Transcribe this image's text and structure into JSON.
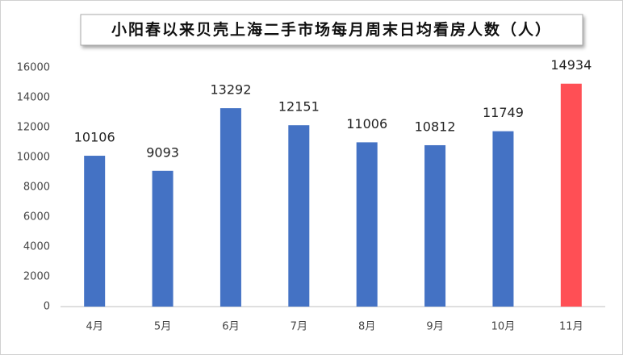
{
  "chart_data": {
    "type": "bar",
    "title": "小阳春以来贝壳上海二手市场每月周末日均看房人数（人）",
    "categories": [
      "4月",
      "5月",
      "6月",
      "7月",
      "8月",
      "9月",
      "10月",
      "11月"
    ],
    "values": [
      10106,
      9093,
      13292,
      12151,
      11006,
      10812,
      11749,
      14934
    ],
    "colors": [
      "#4472c4",
      "#4472c4",
      "#4472c4",
      "#4472c4",
      "#4472c4",
      "#4472c4",
      "#4472c4",
      "#ff4f55"
    ],
    "ylim": [
      0,
      16000
    ],
    "yticks": [
      0,
      2000,
      4000,
      6000,
      8000,
      10000,
      12000,
      14000,
      16000
    ],
    "grid": false,
    "data_labels": true
  }
}
